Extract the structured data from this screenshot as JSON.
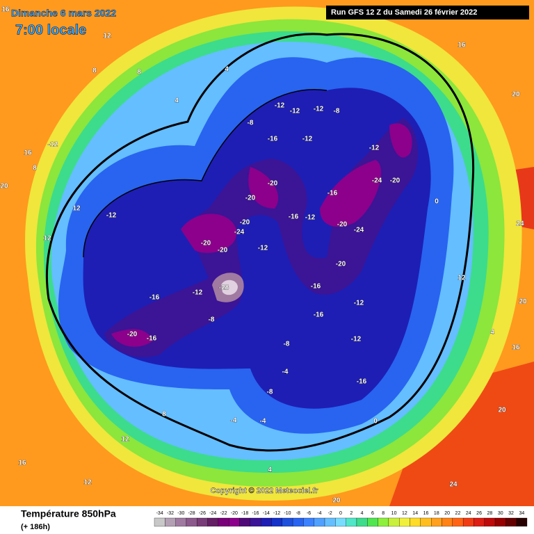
{
  "header": {
    "date": "Dimanche 6 mars 2022",
    "time": "7:00 locale",
    "run": "Run GFS 12 Z du Samedi 26 février 2022"
  },
  "map_labels": [
    16,
    12,
    8,
    8,
    4,
    4,
    -12,
    -12,
    -12,
    -8,
    -8,
    -16,
    -12,
    -20,
    -20,
    -16,
    -12,
    -20,
    -24,
    -20,
    -20,
    -12,
    -16,
    -12,
    -24,
    -20,
    -20,
    -24,
    -20,
    -16,
    -12,
    -28,
    -16,
    -12,
    -20,
    -16,
    -8,
    -16,
    -12,
    -16,
    -8,
    -4,
    -8,
    -4,
    -4,
    0,
    4,
    8,
    12,
    16,
    12,
    20,
    24,
    20,
    24,
    20,
    16,
    16,
    20,
    12,
    12,
    16,
    20,
    8,
    -12,
    -12,
    4,
    12,
    0
  ],
  "copyright": "Copyright © 2022 Meteociel.fr",
  "legend": {
    "title": "Température 850hPa",
    "lead": "(+ 186h)",
    "scale": {
      "values": [
        -34,
        -32,
        -30,
        -28,
        -26,
        -24,
        -22,
        -20,
        -18,
        -16,
        -14,
        -12,
        -10,
        -8,
        -6,
        -4,
        -2,
        0,
        2,
        4,
        6,
        8,
        10,
        12,
        14,
        16,
        18,
        20,
        22,
        24,
        26,
        28,
        30,
        32,
        34
      ],
      "colors": [
        "#c8c8c8",
        "#b4a0b4",
        "#a07aa0",
        "#8c5a8c",
        "#783c78",
        "#641e64",
        "#780078",
        "#8c008c",
        "#500a78",
        "#3c1496",
        "#1e1eb4",
        "#1432c8",
        "#1e50dc",
        "#2864f0",
        "#3c82ff",
        "#50a0ff",
        "#64beff",
        "#78dcff",
        "#50e6c8",
        "#3cdc8c",
        "#50e650",
        "#8cf03c",
        "#c8f03c",
        "#f0f03c",
        "#ffdc28",
        "#ffbe1e",
        "#ffa01e",
        "#ff8214",
        "#ff6414",
        "#f03c14",
        "#dc1e14",
        "#be0a0a",
        "#960000",
        "#640000",
        "#280000"
      ]
    }
  }
}
